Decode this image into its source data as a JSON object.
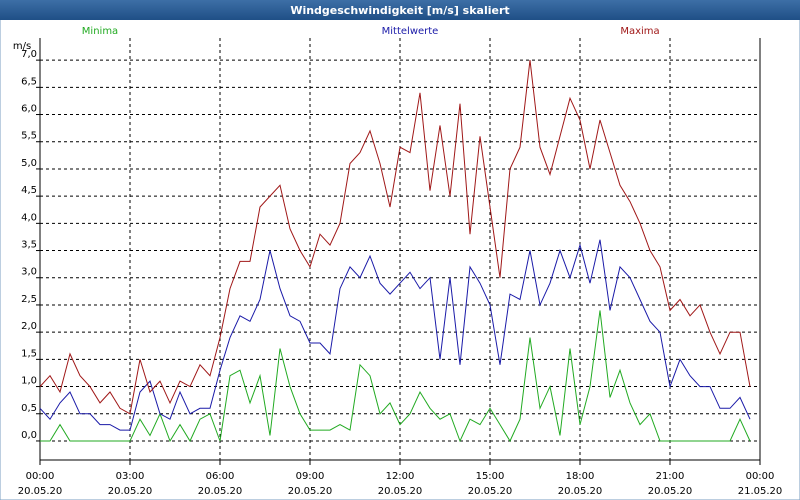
{
  "chart_data": {
    "type": "line",
    "title": "Windgeschwindigkeit [m/s] skaliert",
    "y_label": "m/s",
    "x": [
      0,
      20,
      40,
      60,
      80,
      100,
      120,
      140,
      160,
      180,
      200,
      220,
      240,
      260,
      280,
      300,
      320,
      340,
      360,
      380,
      400,
      420,
      440,
      460,
      480,
      500,
      520,
      540,
      560,
      580,
      600,
      620,
      640,
      660,
      680,
      700,
      720,
      740,
      760,
      780,
      800,
      820,
      840,
      860,
      880,
      900,
      920,
      940,
      960,
      980,
      1000,
      1020,
      1040,
      1060,
      1080,
      1100,
      1120,
      1140,
      1160,
      1180,
      1200,
      1220,
      1240,
      1260,
      1280,
      1300,
      1320,
      1340,
      1360,
      1380,
      1400,
      1420
    ],
    "series": [
      {
        "name": "Minima",
        "color": "#22aa22",
        "values": [
          0,
          0,
          0.3,
          0,
          0,
          0,
          0,
          0,
          0,
          0,
          0.4,
          0.1,
          0.5,
          0,
          0.3,
          0,
          0.4,
          0.5,
          0,
          1.2,
          1.3,
          0.7,
          1.2,
          0.1,
          1.7,
          1.0,
          0.5,
          0.2,
          0.2,
          0.2,
          0.3,
          0.2,
          1.4,
          1.2,
          0.5,
          0.7,
          0.3,
          0.5,
          0.9,
          0.6,
          0.4,
          0.5,
          0,
          0.4,
          0.3,
          0.6,
          0.3,
          0,
          0.4,
          1.9,
          0.6,
          1.0,
          0.1,
          1.7,
          0.3,
          1.0,
          2.4,
          0.8,
          1.3,
          0.7,
          0.3,
          0.5,
          0,
          0,
          0,
          0,
          0,
          0,
          0,
          0,
          0.4,
          0
        ]
      },
      {
        "name": "Mittelwerte",
        "color": "#1a1aa8",
        "values": [
          0.6,
          0.4,
          0.7,
          0.9,
          0.5,
          0.5,
          0.3,
          0.3,
          0.2,
          0.2,
          0.9,
          1.1,
          0.5,
          0.4,
          0.9,
          0.5,
          0.6,
          0.6,
          1.3,
          1.9,
          2.3,
          2.2,
          2.6,
          3.5,
          2.8,
          2.3,
          2.2,
          1.8,
          1.8,
          1.6,
          2.8,
          3.2,
          3.0,
          3.4,
          2.9,
          2.7,
          2.9,
          3.1,
          2.8,
          3.0,
          1.5,
          3.0,
          1.4,
          3.2,
          2.9,
          2.5,
          1.4,
          2.7,
          2.6,
          3.5,
          2.5,
          2.9,
          3.5,
          3.0,
          3.6,
          2.9,
          3.7,
          2.4,
          3.2,
          3.0,
          2.6,
          2.2,
          2.0,
          1.0,
          1.5,
          1.2,
          1.0,
          1.0,
          0.6,
          0.6,
          0.8,
          0.4
        ]
      },
      {
        "name": "Maxima",
        "color": "#a01818",
        "values": [
          1.0,
          1.2,
          0.9,
          1.6,
          1.2,
          1.0,
          0.7,
          0.9,
          0.6,
          0.5,
          1.5,
          0.9,
          1.1,
          0.7,
          1.1,
          1.0,
          1.4,
          1.2,
          1.9,
          2.8,
          3.3,
          3.3,
          4.3,
          4.5,
          4.7,
          3.9,
          3.5,
          3.2,
          3.8,
          3.6,
          4.0,
          5.1,
          5.3,
          5.7,
          5.1,
          4.3,
          5.4,
          5.3,
          6.4,
          4.6,
          5.8,
          4.5,
          6.2,
          3.8,
          5.6,
          4.3,
          3.0,
          5.0,
          5.4,
          7.0,
          5.4,
          4.9,
          5.6,
          6.3,
          5.9,
          5.0,
          5.9,
          5.3,
          4.7,
          4.4,
          4.0,
          3.5,
          3.2,
          2.4,
          2.6,
          2.3,
          2.5,
          2.0,
          1.6,
          2.0,
          2.0,
          1.0
        ]
      }
    ],
    "xlim": [
      0,
      1440
    ],
    "xticks": [
      {
        "value": 0,
        "label": "00:00",
        "date": "20.05.20"
      },
      {
        "value": 180,
        "label": "03:00",
        "date": "20.05.20"
      },
      {
        "value": 360,
        "label": "06:00",
        "date": "20.05.20"
      },
      {
        "value": 540,
        "label": "09:00",
        "date": "20.05.20"
      },
      {
        "value": 720,
        "label": "12:00",
        "date": "20.05.20"
      },
      {
        "value": 900,
        "label": "15:00",
        "date": "20.05.20"
      },
      {
        "value": 1080,
        "label": "18:00",
        "date": "20.05.20"
      },
      {
        "value": 1260,
        "label": "21:00",
        "date": "20.05.20"
      },
      {
        "value": 1440,
        "label": "00:00",
        "date": "21.05.20"
      }
    ],
    "ylim": [
      -0.35,
      7.37
    ],
    "yticks": [
      {
        "value": 0,
        "label": "0,0"
      },
      {
        "value": 0.5,
        "label": "0,5"
      },
      {
        "value": 1,
        "label": "1,0"
      },
      {
        "value": 1.5,
        "label": "1,5"
      },
      {
        "value": 2,
        "label": "2,0"
      },
      {
        "value": 2.5,
        "label": "2,5"
      },
      {
        "value": 3,
        "label": "3,0"
      },
      {
        "value": 3.5,
        "label": "3,5"
      },
      {
        "value": 4,
        "label": "4,0"
      },
      {
        "value": 4.5,
        "label": "4,5"
      },
      {
        "value": 5,
        "label": "5,0"
      },
      {
        "value": 5.5,
        "label": "5,5"
      },
      {
        "value": 6,
        "label": "6,0"
      },
      {
        "value": 6.5,
        "label": "6,5"
      },
      {
        "value": 7,
        "label": "7,0"
      }
    ],
    "grid": true
  }
}
